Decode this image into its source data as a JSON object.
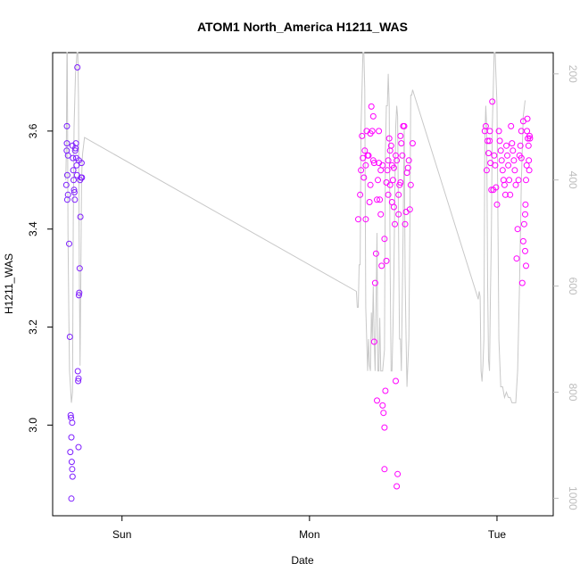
{
  "chart_data": {
    "type": "scatter",
    "title": "ATOM1 North_America H1211_WAS",
    "xlabel": "Date",
    "ylabel": "H1211_WAS",
    "x_ticks": [
      {
        "x": 0.3,
        "label": "Sun"
      },
      {
        "x": 1.3,
        "label": "Mon"
      },
      {
        "x": 2.3,
        "label": "Tue"
      }
    ],
    "xlim": [
      -0.07,
      2.6
    ],
    "ylim": [
      2.815,
      3.76
    ],
    "y_ticks": [
      {
        "y": 3.0,
        "label": "3.0"
      },
      {
        "y": 3.2,
        "label": "3.2"
      },
      {
        "y": 3.4,
        "label": "3.4"
      },
      {
        "y": 3.6,
        "label": "3.6"
      }
    ],
    "right_axis": {
      "ylim": [
        1033,
        160
      ],
      "ticks": [
        {
          "y": 200,
          "label": "200"
        },
        {
          "y": 400,
          "label": "400"
        },
        {
          "y": 600,
          "label": "600"
        },
        {
          "y": 800,
          "label": "800"
        },
        {
          "y": 1000,
          "label": "1000"
        }
      ],
      "color": "#bdbdbd"
    },
    "grid": false,
    "series": [
      {
        "marker": "open-circle",
        "color_start": "#7b1fff",
        "color_end": "#ff00ff",
        "points": [
          [
            0.006,
            3.61
          ],
          [
            0.005,
            3.56
          ],
          [
            0.006,
            3.575
          ],
          [
            0.012,
            3.55
          ],
          [
            0.008,
            3.51
          ],
          [
            0.003,
            3.49
          ],
          [
            0.012,
            3.47
          ],
          [
            0.008,
            3.46
          ],
          [
            0.018,
            3.37
          ],
          [
            0.022,
            3.18
          ],
          [
            0.026,
            3.02
          ],
          [
            0.028,
            3.015
          ],
          [
            0.034,
            3.005
          ],
          [
            0.03,
            2.975
          ],
          [
            0.024,
            2.945
          ],
          [
            0.032,
            2.925
          ],
          [
            0.034,
            2.91
          ],
          [
            0.036,
            2.895
          ],
          [
            0.03,
            2.85
          ],
          [
            0.036,
            3.57
          ],
          [
            0.038,
            3.545
          ],
          [
            0.04,
            3.52
          ],
          [
            0.042,
            3.5
          ],
          [
            0.044,
            3.48
          ],
          [
            0.046,
            3.475
          ],
          [
            0.048,
            3.46
          ],
          [
            0.05,
            3.56
          ],
          [
            0.052,
            3.565
          ],
          [
            0.054,
            3.575
          ],
          [
            0.056,
            3.545
          ],
          [
            0.058,
            3.53
          ],
          [
            0.06,
            3.51
          ],
          [
            0.062,
            3.73
          ],
          [
            0.064,
            3.11
          ],
          [
            0.066,
            3.09
          ],
          [
            0.068,
            3.095
          ],
          [
            0.07,
            3.265
          ],
          [
            0.072,
            3.27
          ],
          [
            0.074,
            3.32
          ],
          [
            0.068,
            2.955
          ],
          [
            0.076,
            3.5
          ],
          [
            0.078,
            3.425
          ],
          [
            0.082,
            3.505
          ],
          [
            0.086,
            3.505
          ],
          [
            0.084,
            3.535
          ],
          [
            0.07,
            3.54
          ],
          [
            1.56,
            3.42
          ],
          [
            1.57,
            3.47
          ],
          [
            1.58,
            3.59
          ],
          [
            1.575,
            3.52
          ],
          [
            1.585,
            3.545
          ],
          [
            1.59,
            3.505
          ],
          [
            1.595,
            3.56
          ],
          [
            1.6,
            3.53
          ],
          [
            1.605,
            3.6
          ],
          [
            1.6,
            3.42
          ],
          [
            1.61,
            3.55
          ],
          [
            1.615,
            3.55
          ],
          [
            1.62,
            3.455
          ],
          [
            1.625,
            3.49
          ],
          [
            1.63,
            3.65
          ],
          [
            1.635,
            3.6
          ],
          [
            1.64,
            3.63
          ],
          [
            1.645,
            3.17
          ],
          [
            1.65,
            3.29
          ],
          [
            1.655,
            3.35
          ],
          [
            1.66,
            3.05
          ],
          [
            1.665,
            3.5
          ],
          [
            1.67,
            3.535
          ],
          [
            1.675,
            3.46
          ],
          [
            1.68,
            3.43
          ],
          [
            1.685,
            3.325
          ],
          [
            1.69,
            3.04
          ],
          [
            1.695,
            3.025
          ],
          [
            1.7,
            2.995
          ],
          [
            1.705,
            3.07
          ],
          [
            1.7,
            2.91
          ],
          [
            1.71,
            3.335
          ],
          [
            1.715,
            3.52
          ],
          [
            1.72,
            3.54
          ],
          [
            1.725,
            3.585
          ],
          [
            1.73,
            3.56
          ],
          [
            1.735,
            3.57
          ],
          [
            1.74,
            3.53
          ],
          [
            1.745,
            3.5
          ],
          [
            1.75,
            3.525
          ],
          [
            1.755,
            3.41
          ],
          [
            1.76,
            3.09
          ],
          [
            1.765,
            2.875
          ],
          [
            1.77,
            2.9
          ],
          [
            1.775,
            3.43
          ],
          [
            1.78,
            3.49
          ],
          [
            1.785,
            3.495
          ],
          [
            1.79,
            3.575
          ],
          [
            1.795,
            3.55
          ],
          [
            1.8,
            3.61
          ],
          [
            1.805,
            3.61
          ],
          [
            1.81,
            3.41
          ],
          [
            1.815,
            3.435
          ],
          [
            1.82,
            3.515
          ],
          [
            1.825,
            3.525
          ],
          [
            1.83,
            3.54
          ],
          [
            1.835,
            3.44
          ],
          [
            1.84,
            3.49
          ],
          [
            1.85,
            3.575
          ],
          [
            1.625,
            3.595
          ],
          [
            1.64,
            3.54
          ],
          [
            1.645,
            3.535
          ],
          [
            1.66,
            3.46
          ],
          [
            1.67,
            3.6
          ],
          [
            1.68,
            3.52
          ],
          [
            1.69,
            3.53
          ],
          [
            1.7,
            3.38
          ],
          [
            1.71,
            3.495
          ],
          [
            1.72,
            3.47
          ],
          [
            1.73,
            3.49
          ],
          [
            1.74,
            3.455
          ],
          [
            1.75,
            3.445
          ],
          [
            1.76,
            3.55
          ],
          [
            1.765,
            3.54
          ],
          [
            1.775,
            3.47
          ],
          [
            1.785,
            3.59
          ],
          [
            2.235,
            3.6
          ],
          [
            2.24,
            3.61
          ],
          [
            2.245,
            3.52
          ],
          [
            2.25,
            3.58
          ],
          [
            2.255,
            3.555
          ],
          [
            2.26,
            3.58
          ],
          [
            2.262,
            3.6
          ],
          [
            2.265,
            3.535
          ],
          [
            2.27,
            3.48
          ],
          [
            2.275,
            3.66
          ],
          [
            2.28,
            3.48
          ],
          [
            2.285,
            3.55
          ],
          [
            2.29,
            3.53
          ],
          [
            2.295,
            3.485
          ],
          [
            2.3,
            3.45
          ],
          [
            2.31,
            3.6
          ],
          [
            2.315,
            3.58
          ],
          [
            2.32,
            3.56
          ],
          [
            2.325,
            3.54
          ],
          [
            2.33,
            3.52
          ],
          [
            2.335,
            3.5
          ],
          [
            2.34,
            3.49
          ],
          [
            2.345,
            3.47
          ],
          [
            2.35,
            3.57
          ],
          [
            2.355,
            3.55
          ],
          [
            2.36,
            3.53
          ],
          [
            2.365,
            3.5
          ],
          [
            2.37,
            3.47
          ],
          [
            2.375,
            3.61
          ],
          [
            2.38,
            3.575
          ],
          [
            2.385,
            3.56
          ],
          [
            2.39,
            3.54
          ],
          [
            2.395,
            3.52
          ],
          [
            2.4,
            3.49
          ],
          [
            2.405,
            3.34
          ],
          [
            2.41,
            3.4
          ],
          [
            2.415,
            3.5
          ],
          [
            2.42,
            3.55
          ],
          [
            2.425,
            3.57
          ],
          [
            2.43,
            3.545
          ],
          [
            2.435,
            3.29
          ],
          [
            2.44,
            3.375
          ],
          [
            2.445,
            3.41
          ],
          [
            2.45,
            3.43
          ],
          [
            2.452,
            3.45
          ],
          [
            2.455,
            3.5
          ],
          [
            2.458,
            3.53
          ],
          [
            2.46,
            3.6
          ],
          [
            2.462,
            3.625
          ],
          [
            2.465,
            3.585
          ],
          [
            2.468,
            3.57
          ],
          [
            2.47,
            3.54
          ],
          [
            2.472,
            3.52
          ],
          [
            2.474,
            3.59
          ],
          [
            2.476,
            3.585
          ],
          [
            2.45,
            3.355
          ],
          [
            2.455,
            3.325
          ],
          [
            2.43,
            3.6
          ],
          [
            2.44,
            3.62
          ]
        ]
      },
      {
        "name": "",
        "axis": "right",
        "color": "#c8c8c8",
        "line_points": [
          [
            -0.0,
            400
          ],
          [
            0.003,
            350
          ],
          [
            0.006,
            160
          ],
          [
            0.008,
            160
          ],
          [
            0.012,
            500
          ],
          [
            0.016,
            650
          ],
          [
            0.02,
            760
          ],
          [
            0.025,
            790
          ],
          [
            0.03,
            820
          ],
          [
            0.036,
            800
          ],
          [
            0.04,
            480
          ],
          [
            0.044,
            300
          ],
          [
            0.048,
            250
          ],
          [
            0.052,
            200
          ],
          [
            0.056,
            180
          ],
          [
            0.06,
            160
          ],
          [
            0.064,
            160
          ],
          [
            0.068,
            250
          ],
          [
            0.072,
            550
          ],
          [
            0.076,
            750
          ],
          [
            0.08,
            600
          ],
          [
            0.084,
            400
          ],
          [
            0.088,
            360
          ],
          [
            0.09,
            350
          ],
          [
            0.1,
            320
          ],
          [
            1.55,
            610
          ],
          [
            1.555,
            640
          ],
          [
            1.56,
            640
          ],
          [
            1.565,
            560
          ],
          [
            1.57,
            560
          ],
          [
            1.575,
            300
          ],
          [
            1.58,
            230
          ],
          [
            1.585,
            160
          ],
          [
            1.59,
            160
          ],
          [
            1.595,
            230
          ],
          [
            1.6,
            640
          ],
          [
            1.61,
            760
          ],
          [
            1.615,
            700
          ],
          [
            1.62,
            750
          ],
          [
            1.625,
            760
          ],
          [
            1.63,
            650
          ],
          [
            1.635,
            700
          ],
          [
            1.64,
            600
          ],
          [
            1.645,
            700
          ],
          [
            1.65,
            760
          ],
          [
            1.655,
            640
          ],
          [
            1.66,
            500
          ],
          [
            1.665,
            760
          ],
          [
            1.67,
            760
          ],
          [
            1.675,
            660
          ],
          [
            1.68,
            760
          ],
          [
            1.69,
            760
          ],
          [
            1.7,
            720
          ],
          [
            1.705,
            350
          ],
          [
            1.71,
            260
          ],
          [
            1.715,
            260
          ],
          [
            1.72,
            200
          ],
          [
            1.725,
            260
          ],
          [
            1.73,
            560
          ],
          [
            1.735,
            760
          ],
          [
            1.74,
            760
          ],
          [
            1.745,
            680
          ],
          [
            1.75,
            580
          ],
          [
            1.755,
            420
          ],
          [
            1.76,
            300
          ],
          [
            1.765,
            260
          ],
          [
            1.77,
            280
          ],
          [
            1.775,
            500
          ],
          [
            1.78,
            700
          ],
          [
            1.785,
            700
          ],
          [
            1.79,
            760
          ],
          [
            1.8,
            480
          ],
          [
            1.805,
            300
          ],
          [
            1.81,
            580
          ],
          [
            1.815,
            700
          ],
          [
            1.82,
            790
          ],
          [
            1.83,
            700
          ],
          [
            1.835,
            500
          ],
          [
            1.84,
            240
          ],
          [
            1.845,
            240
          ],
          [
            1.85,
            230
          ],
          [
            2.2,
            625
          ],
          [
            2.205,
            610
          ],
          [
            2.21,
            620
          ],
          [
            2.215,
            760
          ],
          [
            2.22,
            780
          ],
          [
            2.225,
            750
          ],
          [
            2.23,
            700
          ],
          [
            2.235,
            330
          ],
          [
            2.24,
            260
          ],
          [
            2.245,
            300
          ],
          [
            2.25,
            600
          ],
          [
            2.255,
            740
          ],
          [
            2.26,
            760
          ],
          [
            2.265,
            620
          ],
          [
            2.27,
            500
          ],
          [
            2.275,
            300
          ],
          [
            2.28,
            230
          ],
          [
            2.285,
            160
          ],
          [
            2.29,
            160
          ],
          [
            2.3,
            260
          ],
          [
            2.31,
            700
          ],
          [
            2.32,
            790
          ],
          [
            2.33,
            790
          ],
          [
            2.34,
            810
          ],
          [
            2.35,
            800
          ],
          [
            2.36,
            810
          ],
          [
            2.37,
            810
          ],
          [
            2.38,
            820
          ],
          [
            2.39,
            820
          ],
          [
            2.4,
            820
          ],
          [
            2.41,
            760
          ],
          [
            2.42,
            600
          ],
          [
            2.43,
            400
          ],
          [
            2.44,
            280
          ],
          [
            2.45,
            250
          ]
        ]
      }
    ]
  }
}
